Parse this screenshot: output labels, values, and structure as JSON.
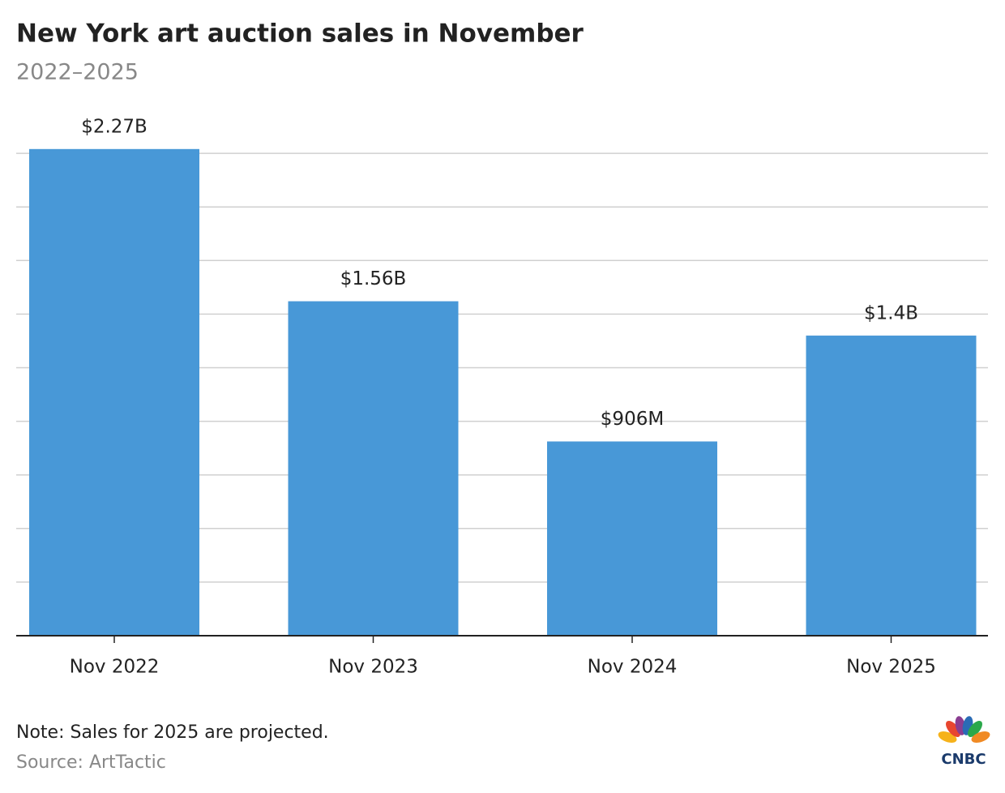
{
  "chart_data": {
    "type": "bar",
    "title": "New York art auction sales in November",
    "subtitle": "2022–2025",
    "categories": [
      "Nov 2022",
      "Nov 2023",
      "Nov 2024",
      "Nov 2025"
    ],
    "values": [
      2.27,
      1.56,
      0.906,
      1.4
    ],
    "value_labels": [
      "$2.27B",
      "$1.56B",
      "$906M",
      "$1.4B"
    ],
    "color": "#4898d7",
    "ylim": [
      0,
      2.5
    ],
    "yticks": [
      0,
      0.25,
      0.5,
      0.75,
      1,
      1.25,
      1.5,
      1.75,
      2,
      2.25
    ],
    "grid": true,
    "note": "Note: Sales for 2025 are projected.",
    "source": "Source: ArtTactic",
    "logo_text": "CNBC"
  }
}
